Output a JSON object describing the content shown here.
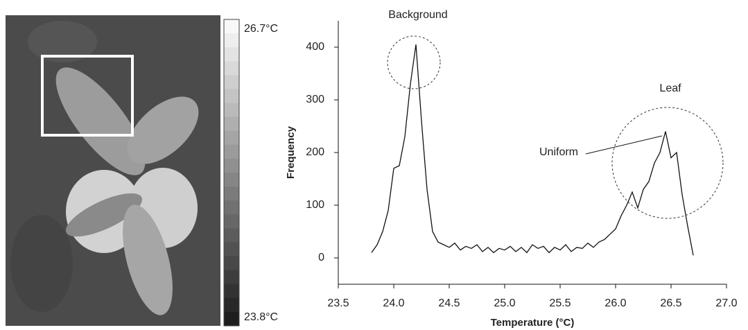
{
  "thermal_image": {
    "scale_max_label": "26.7°C",
    "scale_min_label": "23.8°C"
  },
  "chart_data": {
    "type": "line",
    "x_label": "Temperature (°C)",
    "y_label": "Frequency",
    "annotations": [
      "Background",
      "Leaf",
      "Uniform"
    ],
    "color": "#111111",
    "x": [
      23.8,
      23.85,
      23.9,
      23.95,
      24.0,
      24.05,
      24.1,
      24.15,
      24.2,
      24.25,
      24.3,
      24.35,
      24.4,
      24.45,
      24.5,
      24.55,
      24.6,
      24.65,
      24.7,
      24.75,
      24.8,
      24.85,
      24.9,
      24.95,
      25.0,
      25.05,
      25.1,
      25.15,
      25.2,
      25.25,
      25.3,
      25.35,
      25.4,
      25.45,
      25.5,
      25.55,
      25.6,
      25.65,
      25.7,
      25.75,
      25.8,
      25.85,
      25.9,
      25.95,
      26.0,
      26.05,
      26.1,
      26.15,
      26.2,
      26.25,
      26.3,
      26.35,
      26.4,
      26.45,
      26.5,
      26.55,
      26.6,
      26.65,
      26.7
    ],
    "values": [
      10,
      25,
      50,
      90,
      170,
      175,
      230,
      330,
      405,
      260,
      130,
      50,
      30,
      25,
      20,
      28,
      15,
      22,
      18,
      25,
      12,
      20,
      10,
      18,
      15,
      22,
      12,
      20,
      10,
      25,
      18,
      22,
      10,
      20,
      15,
      25,
      12,
      20,
      18,
      28,
      20,
      30,
      35,
      45,
      55,
      80,
      100,
      125,
      95,
      130,
      145,
      180,
      200,
      240,
      190,
      200,
      120,
      60,
      5
    ],
    "xlim": [
      23.5,
      27.0
    ],
    "xticks": [
      23.5,
      {
        "value": 24,
        "label": "24.0"
      },
      24.5,
      {
        "value": 25,
        "label": "25.0"
      },
      25.5,
      {
        "value": 26,
        "label": "26.0"
      },
      26.5,
      {
        "value": 27,
        "label": "27.0"
      }
    ],
    "ylim": [
      -50,
      450
    ],
    "yticks": [
      0,
      100,
      200,
      300,
      400
    ]
  }
}
